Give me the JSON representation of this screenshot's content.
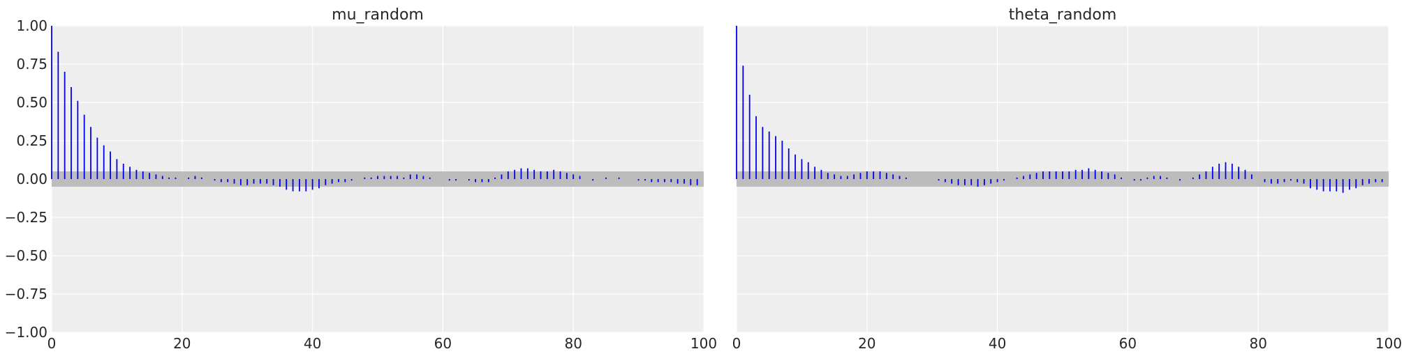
{
  "chart_data": [
    {
      "type": "bar",
      "title": "mu_random",
      "xlabel": "",
      "ylabel": "",
      "xlim": [
        0,
        100
      ],
      "ylim": [
        -1.0,
        1.0
      ],
      "grid": true,
      "x_ticks": [
        "0",
        "20",
        "40",
        "60",
        "80",
        "100"
      ],
      "y_ticks": [
        "1.00",
        "0.75",
        "0.50",
        "0.25",
        "0.00",
        "−0.25",
        "−0.50",
        "−0.75",
        "−1.00"
      ],
      "confidence_band": [
        -0.05,
        0.05
      ],
      "x": [
        0,
        1,
        2,
        3,
        4,
        5,
        6,
        7,
        8,
        9,
        10,
        11,
        12,
        13,
        14,
        15,
        16,
        17,
        18,
        19,
        20,
        21,
        22,
        23,
        24,
        25,
        26,
        27,
        28,
        29,
        30,
        31,
        32,
        33,
        34,
        35,
        36,
        37,
        38,
        39,
        40,
        41,
        42,
        43,
        44,
        45,
        46,
        47,
        48,
        49,
        50,
        51,
        52,
        53,
        54,
        55,
        56,
        57,
        58,
        59,
        60,
        61,
        62,
        63,
        64,
        65,
        66,
        67,
        68,
        69,
        70,
        71,
        72,
        73,
        74,
        75,
        76,
        77,
        78,
        79,
        80,
        81,
        82,
        83,
        84,
        85,
        86,
        87,
        88,
        89,
        90,
        91,
        92,
        93,
        94,
        95,
        96,
        97,
        98,
        99
      ],
      "values": [
        1.0,
        0.83,
        0.7,
        0.6,
        0.51,
        0.42,
        0.34,
        0.27,
        0.22,
        0.18,
        0.13,
        0.1,
        0.08,
        0.06,
        0.05,
        0.04,
        0.03,
        0.02,
        0.01,
        0.01,
        0.0,
        0.01,
        0.02,
        0.01,
        0.0,
        -0.01,
        -0.02,
        -0.02,
        -0.03,
        -0.04,
        -0.04,
        -0.03,
        -0.03,
        -0.03,
        -0.04,
        -0.05,
        -0.07,
        -0.08,
        -0.08,
        -0.08,
        -0.07,
        -0.06,
        -0.04,
        -0.03,
        -0.02,
        -0.02,
        -0.01,
        0.0,
        0.01,
        0.01,
        0.02,
        0.02,
        0.02,
        0.02,
        0.01,
        0.03,
        0.03,
        0.02,
        0.01,
        0.0,
        0.0,
        -0.01,
        -0.01,
        0.0,
        -0.01,
        -0.02,
        -0.02,
        -0.02,
        0.01,
        0.03,
        0.05,
        0.06,
        0.07,
        0.07,
        0.06,
        0.05,
        0.05,
        0.06,
        0.05,
        0.04,
        0.03,
        0.02,
        0.0,
        -0.01,
        0.0,
        0.01,
        0.0,
        0.01,
        0.0,
        0.0,
        -0.01,
        -0.01,
        -0.02,
        -0.02,
        -0.02,
        -0.02,
        -0.03,
        -0.03,
        -0.04,
        -0.04
      ]
    },
    {
      "type": "bar",
      "title": "theta_random",
      "xlabel": "",
      "ylabel": "",
      "xlim": [
        0,
        100
      ],
      "ylim": [
        -1.0,
        1.0
      ],
      "grid": true,
      "x_ticks": [
        "0",
        "20",
        "40",
        "60",
        "80",
        "100"
      ],
      "confidence_band": [
        -0.05,
        0.05
      ],
      "x": [
        0,
        1,
        2,
        3,
        4,
        5,
        6,
        7,
        8,
        9,
        10,
        11,
        12,
        13,
        14,
        15,
        16,
        17,
        18,
        19,
        20,
        21,
        22,
        23,
        24,
        25,
        26,
        27,
        28,
        29,
        30,
        31,
        32,
        33,
        34,
        35,
        36,
        37,
        38,
        39,
        40,
        41,
        42,
        43,
        44,
        45,
        46,
        47,
        48,
        49,
        50,
        51,
        52,
        53,
        54,
        55,
        56,
        57,
        58,
        59,
        60,
        61,
        62,
        63,
        64,
        65,
        66,
        67,
        68,
        69,
        70,
        71,
        72,
        73,
        74,
        75,
        76,
        77,
        78,
        79,
        80,
        81,
        82,
        83,
        84,
        85,
        86,
        87,
        88,
        89,
        90,
        91,
        92,
        93,
        94,
        95,
        96,
        97,
        98,
        99
      ],
      "values": [
        1.0,
        0.74,
        0.55,
        0.41,
        0.34,
        0.31,
        0.28,
        0.25,
        0.2,
        0.16,
        0.13,
        0.11,
        0.08,
        0.06,
        0.04,
        0.03,
        0.02,
        0.02,
        0.03,
        0.04,
        0.05,
        0.05,
        0.05,
        0.04,
        0.03,
        0.02,
        0.01,
        0.0,
        0.0,
        0.0,
        0.0,
        -0.01,
        -0.02,
        -0.03,
        -0.04,
        -0.04,
        -0.04,
        -0.05,
        -0.04,
        -0.03,
        -0.02,
        -0.01,
        0.0,
        0.01,
        0.02,
        0.03,
        0.04,
        0.05,
        0.05,
        0.05,
        0.05,
        0.05,
        0.06,
        0.06,
        0.07,
        0.06,
        0.05,
        0.04,
        0.03,
        0.01,
        0.0,
        -0.01,
        -0.01,
        0.01,
        0.02,
        0.02,
        0.01,
        0.0,
        -0.01,
        0.0,
        0.01,
        0.03,
        0.05,
        0.08,
        0.1,
        0.11,
        0.1,
        0.08,
        0.06,
        0.03,
        0.0,
        -0.02,
        -0.03,
        -0.03,
        -0.02,
        -0.01,
        -0.02,
        -0.03,
        -0.06,
        -0.07,
        -0.08,
        -0.08,
        -0.08,
        -0.09,
        -0.07,
        -0.06,
        -0.04,
        -0.03,
        -0.02,
        -0.02
      ]
    }
  ],
  "colors": {
    "stem": "#0000ee",
    "band": "#bcbcbc",
    "plot_bg": "#eeeeee",
    "grid": "#ffffff",
    "text": "#262626"
  }
}
